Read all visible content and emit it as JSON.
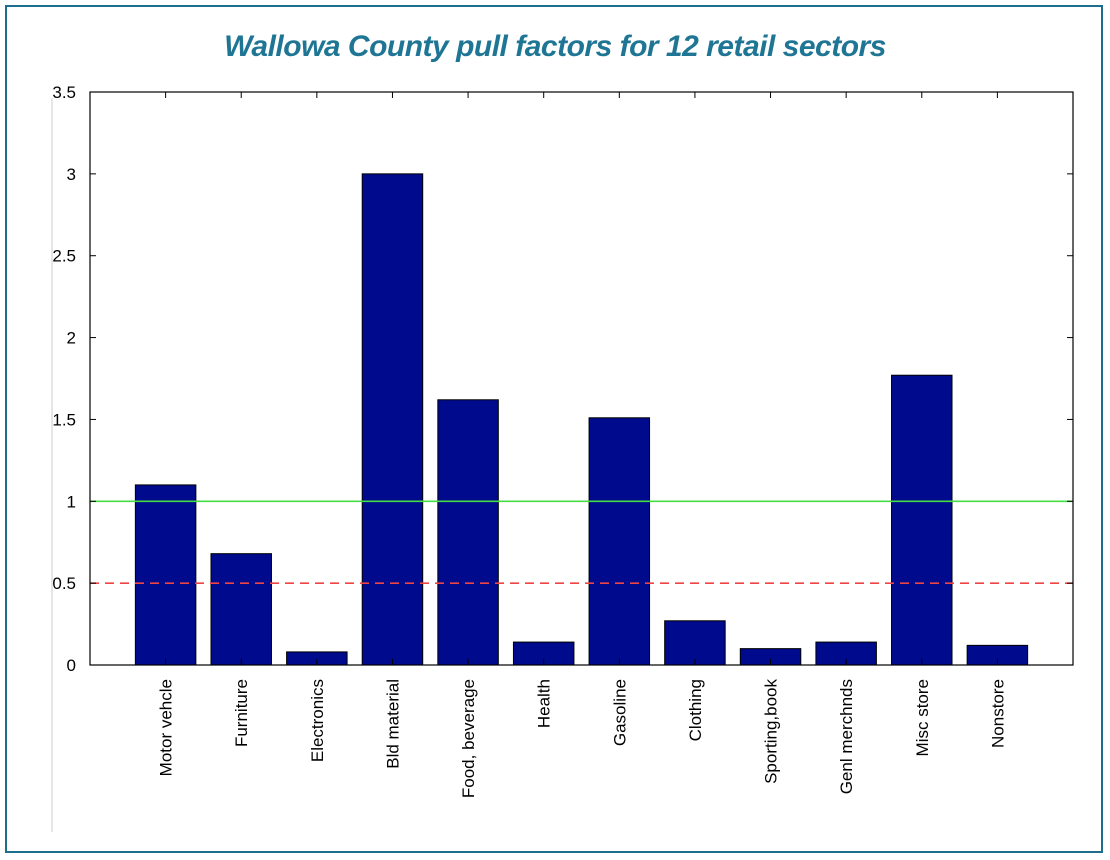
{
  "chart_data": {
    "type": "bar",
    "title": "Wallowa County pull factors for 12 retail sectors",
    "xlabel": "",
    "ylabel": "",
    "categories": [
      "Motor vehcle",
      "Furniture",
      "Electronics",
      "Bld material",
      "Food, beverage",
      "Health",
      "Gasoline",
      "Clothing",
      "Sporting,book",
      "Genl merchnds",
      "Misc store",
      "Nonstore"
    ],
    "values": [
      1.1,
      0.68,
      0.08,
      3.0,
      1.62,
      0.14,
      1.51,
      0.27,
      0.1,
      0.14,
      1.77,
      0.12
    ],
    "ylim": [
      0,
      3.5
    ],
    "yticks": [
      "0",
      "0.5",
      "1",
      "1.5",
      "2",
      "2.5",
      "3",
      "3.5"
    ],
    "grid": false,
    "bar_color": "#000a8c",
    "reference_lines": [
      {
        "value": 1.0,
        "style": "solid",
        "color": "#44dd44"
      },
      {
        "value": 0.5,
        "style": "dashed",
        "color": "#ee4444"
      }
    ]
  },
  "colors": {
    "title": "#1f7694",
    "frame": "#1c6f8c"
  }
}
